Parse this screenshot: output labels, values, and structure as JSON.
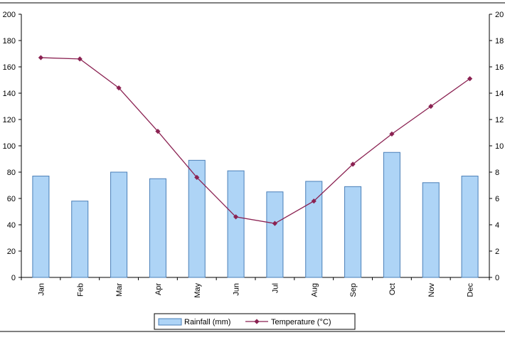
{
  "chart_data": {
    "type": "bar",
    "categories": [
      "Jan",
      "Feb",
      "Mar",
      "Apr",
      "May",
      "Jun",
      "Jul",
      "Aug",
      "Sep",
      "Oct",
      "Nov",
      "Dec"
    ],
    "series": [
      {
        "name": "Rainfall (mm)",
        "type": "bar",
        "axis": "left",
        "values": [
          77,
          58,
          80,
          75,
          89,
          81,
          65,
          73,
          69,
          95,
          72,
          77
        ]
      },
      {
        "name": "Temperature (°C)",
        "type": "line",
        "axis": "right",
        "values": [
          16.7,
          16.6,
          14.4,
          11.1,
          7.6,
          4.6,
          4.1,
          5.8,
          8.6,
          10.9,
          13.0,
          15.1
        ]
      }
    ],
    "y_left": {
      "min": 0,
      "max": 200,
      "ticks": [
        0,
        20,
        40,
        60,
        80,
        100,
        120,
        140,
        160,
        180,
        200
      ]
    },
    "y_right": {
      "min": 0,
      "max": 20,
      "ticks": [
        0,
        2,
        4,
        6,
        8,
        10,
        12,
        14,
        16,
        18,
        20
      ]
    },
    "legend_position": "bottom",
    "grid": false,
    "colors": {
      "bar_fill": "#aed4f6",
      "bar_stroke": "#4a7fb8",
      "line": "#8b2252",
      "axis": "#000000"
    }
  }
}
